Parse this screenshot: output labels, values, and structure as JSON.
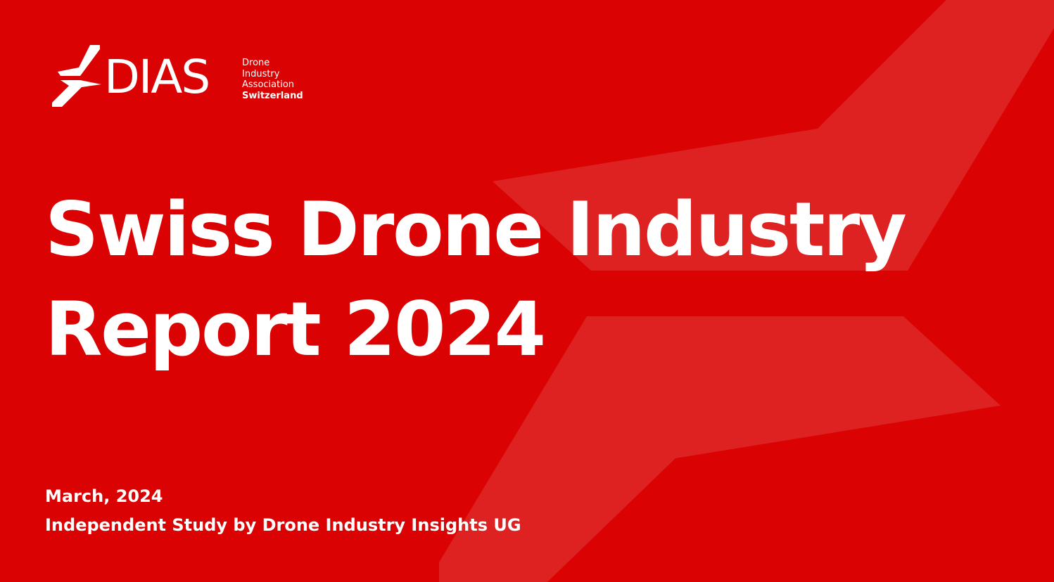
{
  "colors": {
    "background": "#DA0202",
    "shape_overlay": "#FFFFFF",
    "text": "#FFFFFF"
  },
  "logo": {
    "wordmark": "DIAS",
    "subtitle_lines": [
      "Drone",
      "Industry",
      "Association",
      "Switzerland"
    ],
    "icon": "dias-wing-icon"
  },
  "title": {
    "line1": "Swiss Drone Industry",
    "line2": "Report 2024"
  },
  "meta": {
    "date": "March, 2024",
    "author": "Independent Study by Drone Industry Insights UG"
  }
}
